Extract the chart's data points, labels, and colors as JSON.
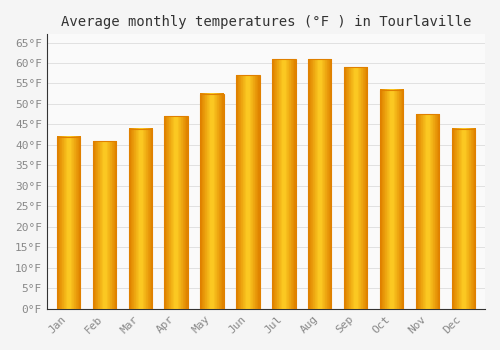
{
  "title": "Average monthly temperatures (°F ) in Tourlaville",
  "months": [
    "Jan",
    "Feb",
    "Mar",
    "Apr",
    "May",
    "Jun",
    "Jul",
    "Aug",
    "Sep",
    "Oct",
    "Nov",
    "Dec"
  ],
  "values": [
    42,
    41,
    44,
    47,
    52.5,
    57,
    61,
    61,
    59,
    53.5,
    47.5,
    44
  ],
  "bar_color_face": "#FFC020",
  "bar_color_edge": "#E08000",
  "background_color": "#F5F5F5",
  "plot_bg_color": "#FAFAFA",
  "grid_color": "#DDDDDD",
  "ytick_labels": [
    "0°F",
    "5°F",
    "10°F",
    "15°F",
    "20°F",
    "25°F",
    "30°F",
    "35°F",
    "40°F",
    "45°F",
    "50°F",
    "55°F",
    "60°F",
    "65°F"
  ],
  "ytick_values": [
    0,
    5,
    10,
    15,
    20,
    25,
    30,
    35,
    40,
    45,
    50,
    55,
    60,
    65
  ],
  "ylim": [
    0,
    67
  ],
  "title_fontsize": 10,
  "tick_fontsize": 8,
  "tick_color": "#888888",
  "spine_color": "#333333",
  "label_font": "monospace"
}
